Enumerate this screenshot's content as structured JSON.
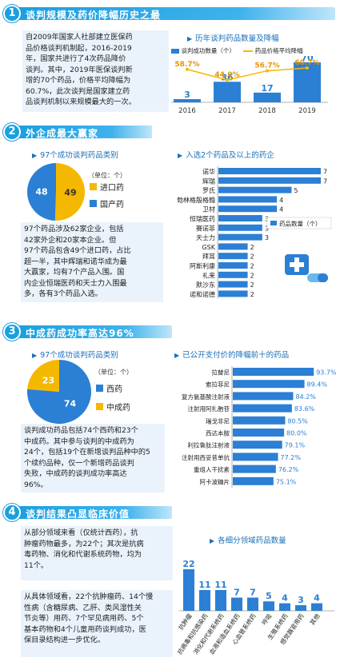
{
  "colors": {
    "accent": "#1a9fe0",
    "bar": "#2b7fd4",
    "orange": "#f5b800",
    "light": "#eaf3fb"
  },
  "s1": {
    "num": "1",
    "title": "谈判规模及药价降幅历史之最",
    "p": [
      "自2009年国家人社部建立医保药",
      "品价格谈判机制起，2016-2019",
      "年，国家共进行了4次药品降价",
      "谈判。其中，2019年医保谈判新",
      "增的70个药品，价格平均降幅为",
      "60.7%，此次谈判是国家建立药",
      "品谈判机制以来规模最大的一次。"
    ],
    "chart_title": "历年谈判药品数量及降幅",
    "legend": [
      "谈判成功数量（个）",
      "药品价格平均降幅"
    ],
    "chart_data": {
      "type": "bar",
      "categories": [
        "2016",
        "2017",
        "2018",
        "2019"
      ],
      "series": [
        {
          "name": "谈判成功数量（个）",
          "values": [
            3,
            36,
            17,
            70
          ]
        },
        {
          "name": "药品价格平均降幅",
          "values": [
            "58.7%",
            "44.0%",
            "56.7%",
            "60.7%"
          ]
        }
      ]
    }
  },
  "s2": {
    "num": "2",
    "title": "外企成最大赢家",
    "pie_title": "97个成功谈判药品类别",
    "pie_unit": "（单位：个）",
    "pie_chart_data": {
      "type": "pie",
      "series": [
        {
          "name": "进口药",
          "value": 49
        },
        {
          "name": "国产药",
          "value": 48
        }
      ]
    },
    "p": [
      "97个药品涉及62家企业，包括",
      "42家外企和20家本企业。但",
      "97个药品包含49个进口药，占比",
      "超一半，其中辉瑞和诺华成为最",
      "大赢家，均有7个产品入围。国",
      "内企业恒瑞医药和天士力入围最",
      "多，各有3个药品入选。"
    ],
    "bar_title": "入选2个药品及以上的药企",
    "bar_legend": "药品数量（个）",
    "bar_chart_data": {
      "type": "bar",
      "categories": [
        "诺华",
        "辉瑞",
        "罗氏",
        "勃林格殷格翰",
        "卫材",
        "恒瑞医药",
        "赛诺菲",
        "天士力",
        "GSK",
        "拜耳",
        "阿斯利康",
        "礼来",
        "默沙东",
        "诺和诺德"
      ],
      "values": [
        7,
        7,
        5,
        4,
        4,
        3,
        3,
        3,
        2,
        2,
        2,
        2,
        2,
        2
      ]
    }
  },
  "s3": {
    "num": "3",
    "title": "中成药成功率高达96%",
    "pie_title": "97个成功谈判药品类别",
    "pie_unit": "（单位：个）",
    "pie_chart_data": {
      "type": "pie",
      "series": [
        {
          "name": "西药",
          "value": 74
        },
        {
          "name": "中成药",
          "value": 23
        }
      ]
    },
    "p": [
      "谈判成功药品包括74个西药和23个",
      "中成药。其中参与谈判的中成药为",
      "24个，包括19个在新增谈判品种中的5",
      "个续约品种，仅一个新增药品谈判",
      "失败，中成药的谈判成功率高达",
      "96%。"
    ],
    "bar_title": "已公开支付价的降幅前十的药品",
    "bar_chart_data": {
      "type": "bar",
      "categories": [
        "拉替尼",
        "索拉菲尼",
        "复方氨基酸注射液",
        "注射用阿扎胞苷",
        "瑞戈非尼",
        "西达本胺",
        "利拉鲁肽注射液",
        "注射用西妥昔单抗",
        "重组人干扰素",
        "阿卡波糖片"
      ],
      "values": [
        "93.7%",
        "89.4%",
        "84.2%",
        "83.6%",
        "80.5%",
        "80.0%",
        "79.1%",
        "77.2%",
        "76.2%",
        "75.1%"
      ]
    }
  },
  "s4": {
    "num": "4",
    "title": "谈判结果凸显临床价值",
    "p1": [
      "从部分领域来看（仅统计西药），抗",
      "肿瘤药物最多，为22个；其次是抗病",
      "毒药物、消化和代谢系统药物，均为",
      "11个。"
    ],
    "p2": [
      "从具体领域看，22个抗肿瘤药、14个慢",
      "性病（含糖尿病、乙肝、类风湿性关",
      "节炎等）用药、7个罕见病用药、5个",
      "基本药物和4个儿童用药谈判成功，医",
      "保目录结构进一步优化。"
    ],
    "bar_title": "各细分领域药品数量",
    "chart_data": {
      "type": "bar",
      "categories": [
        "抗肿瘤",
        "抗病毒和抗感染药",
        "消化和代谢系统药",
        "血液和造血系统药",
        "心血管系统药",
        "呼吸",
        "生殖系统药",
        "感觉器官用药",
        "其他"
      ],
      "values": [
        22,
        11,
        11,
        7,
        7,
        5,
        4,
        3,
        4
      ]
    }
  }
}
